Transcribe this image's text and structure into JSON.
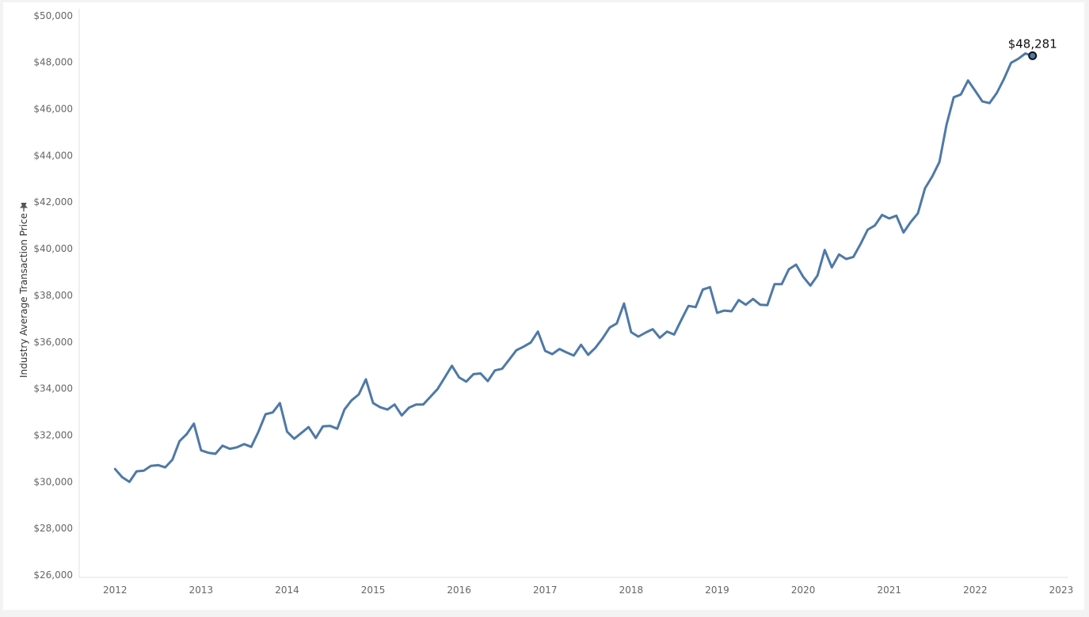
{
  "chart_data": {
    "type": "line",
    "title": "",
    "xlabel": "",
    "ylabel": "Industry Average Transaction Price",
    "y_unit": "USD",
    "ylim": [
      25900,
      50300
    ],
    "xlim": [
      "2011-08",
      "2023-02"
    ],
    "y_ticks": [
      26000,
      28000,
      30000,
      32000,
      34000,
      36000,
      38000,
      40000,
      42000,
      44000,
      46000,
      48000,
      50000
    ],
    "y_tick_labels": [
      "$26,000",
      "$28,000",
      "$30,000",
      "$32,000",
      "$34,000",
      "$36,000",
      "$38,000",
      "$40,000",
      "$42,000",
      "$44,000",
      "$46,000",
      "$48,000",
      "$50,000"
    ],
    "x_ticks": [
      "2012-01",
      "2013-01",
      "2014-01",
      "2015-01",
      "2016-01",
      "2017-01",
      "2018-01",
      "2019-01",
      "2020-01",
      "2021-01",
      "2022-01",
      "2023-01"
    ],
    "x_tick_labels": [
      "2012",
      "2013",
      "2014",
      "2015",
      "2016",
      "2017",
      "2018",
      "2019",
      "2020",
      "2021",
      "2022",
      "2023"
    ],
    "grid": false,
    "legend": "none",
    "series_color": "#4e79a7",
    "marker_color": "#4e79a7",
    "marker_stroke": "#111111",
    "annotation": {
      "x": "2022-09",
      "value": 48281,
      "label": "$48,281"
    },
    "series": [
      {
        "x": [
          "2012-01",
          "2012-02",
          "2012-03",
          "2012-04",
          "2012-05",
          "2012-06",
          "2012-07",
          "2012-08",
          "2012-09",
          "2012-10",
          "2012-11",
          "2012-12",
          "2013-01",
          "2013-02",
          "2013-03",
          "2013-04",
          "2013-05",
          "2013-06",
          "2013-07",
          "2013-08",
          "2013-09",
          "2013-10",
          "2013-11",
          "2013-12",
          "2014-01",
          "2014-02",
          "2014-03",
          "2014-04",
          "2014-05",
          "2014-06",
          "2014-07",
          "2014-08",
          "2014-09",
          "2014-10",
          "2014-11",
          "2014-12",
          "2015-01",
          "2015-02",
          "2015-03",
          "2015-04",
          "2015-05",
          "2015-06",
          "2015-07",
          "2015-08",
          "2015-09",
          "2015-10",
          "2015-11",
          "2015-12",
          "2016-01",
          "2016-02",
          "2016-03",
          "2016-04",
          "2016-05",
          "2016-06",
          "2016-07",
          "2016-08",
          "2016-09",
          "2016-10",
          "2016-11",
          "2016-12",
          "2017-01",
          "2017-02",
          "2017-03",
          "2017-04",
          "2017-05",
          "2017-06",
          "2017-07",
          "2017-08",
          "2017-09",
          "2017-10",
          "2017-11",
          "2017-12",
          "2018-01",
          "2018-02",
          "2018-03",
          "2018-04",
          "2018-05",
          "2018-06",
          "2018-07",
          "2018-08",
          "2018-09",
          "2018-10",
          "2018-11",
          "2018-12",
          "2019-01",
          "2019-02",
          "2019-03",
          "2019-04",
          "2019-05",
          "2019-06",
          "2019-07",
          "2019-08",
          "2019-09",
          "2019-10",
          "2019-11",
          "2019-12",
          "2020-01",
          "2020-02",
          "2020-03",
          "2020-04",
          "2020-05",
          "2020-06",
          "2020-07",
          "2020-08",
          "2020-09",
          "2020-10",
          "2020-11",
          "2020-12",
          "2021-01",
          "2021-02",
          "2021-03",
          "2021-04",
          "2021-05",
          "2021-06",
          "2021-07",
          "2021-08",
          "2021-09",
          "2021-10",
          "2021-11",
          "2021-12",
          "2022-01",
          "2022-02",
          "2022-03",
          "2022-04",
          "2022-05",
          "2022-06",
          "2022-07",
          "2022-08",
          "2022-09"
        ],
        "values": [
          30550,
          30200,
          30000,
          30450,
          30480,
          30680,
          30720,
          30620,
          30950,
          31750,
          32050,
          32500,
          31350,
          31250,
          31200,
          31550,
          31420,
          31480,
          31620,
          31500,
          32150,
          32900,
          32980,
          33380,
          32150,
          31850,
          32100,
          32350,
          31880,
          32380,
          32400,
          32280,
          33100,
          33500,
          33750,
          34400,
          33380,
          33200,
          33100,
          33320,
          32850,
          33180,
          33320,
          33320,
          33650,
          33980,
          34480,
          34980,
          34480,
          34300,
          34620,
          34650,
          34320,
          34780,
          34850,
          35250,
          35650,
          35800,
          35980,
          36450,
          35620,
          35480,
          35700,
          35550,
          35420,
          35880,
          35450,
          35750,
          36150,
          36620,
          36800,
          37650,
          36420,
          36230,
          36400,
          36550,
          36180,
          36450,
          36320,
          36950,
          37550,
          37500,
          38250,
          38350,
          37250,
          37350,
          37320,
          37800,
          37600,
          37850,
          37600,
          37580,
          38480,
          38480,
          39120,
          39320,
          38800,
          38420,
          38850,
          39950,
          39200,
          39760,
          39560,
          39650,
          40200,
          40820,
          41000,
          41450,
          41300,
          41420,
          40700,
          41150,
          41520,
          42600,
          43100,
          43720,
          45320,
          46500,
          46620,
          47220,
          46780,
          46320,
          46250,
          46680,
          47280,
          47980,
          48150,
          48380,
          48281
        ]
      }
    ]
  }
}
